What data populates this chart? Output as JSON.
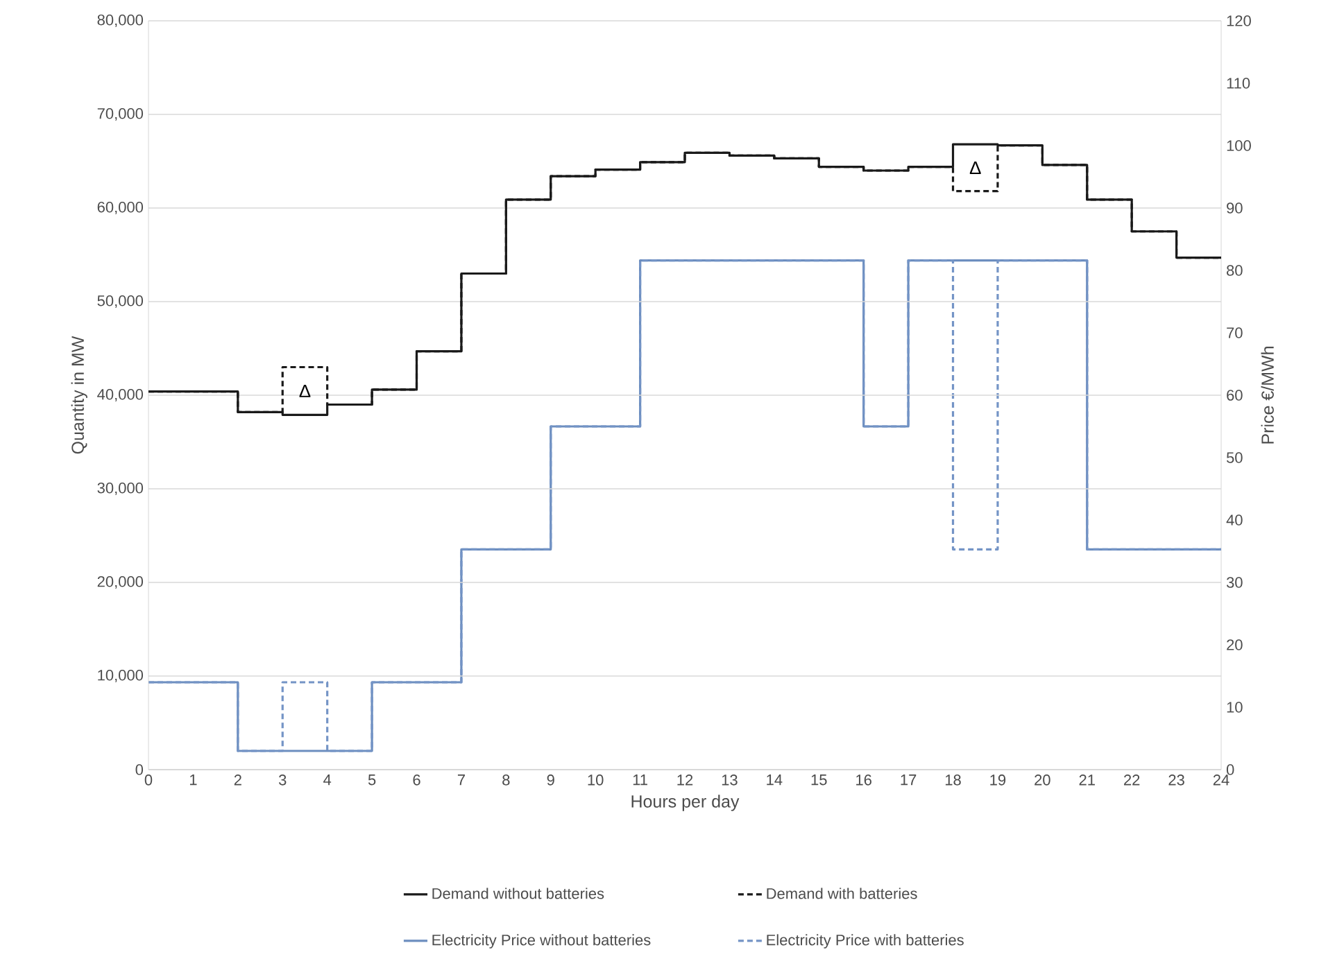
{
  "chart_data": {
    "type": "step",
    "xlabel": "Hours per day",
    "ylabel": "Quantity in MW",
    "y2label": "Price €/MWh",
    "x": [
      0,
      1,
      2,
      3,
      4,
      5,
      6,
      7,
      8,
      9,
      10,
      11,
      12,
      13,
      14,
      15,
      16,
      17,
      18,
      19,
      20,
      21,
      22,
      23,
      24
    ],
    "xlim": [
      0,
      24
    ],
    "xticks": [
      0,
      1,
      2,
      3,
      4,
      5,
      6,
      7,
      8,
      9,
      10,
      11,
      12,
      13,
      14,
      15,
      16,
      17,
      18,
      19,
      20,
      21,
      22,
      23,
      24
    ],
    "ylim": [
      0,
      80000
    ],
    "yticks": [
      {
        "value": 0,
        "label": "0"
      },
      {
        "value": 10000,
        "label": "10,000"
      },
      {
        "value": 20000,
        "label": "20,000"
      },
      {
        "value": 30000,
        "label": "30,000"
      },
      {
        "value": 40000,
        "label": "40,000"
      },
      {
        "value": 50000,
        "label": "50,000"
      },
      {
        "value": 60000,
        "label": "60,000"
      },
      {
        "value": 70000,
        "label": "70,000"
      },
      {
        "value": 80000,
        "label": "80,000"
      }
    ],
    "y2lim": [
      0,
      120
    ],
    "y2ticks": [
      0,
      10,
      20,
      30,
      40,
      50,
      60,
      70,
      80,
      90,
      100,
      110,
      120
    ],
    "grid": "y",
    "legend": "bottom",
    "marker": "none",
    "series": [
      {
        "name": "Demand without batteries",
        "color": "#1a1a1a",
        "line_style": "solid",
        "values": [
          40400,
          40400,
          38200,
          37900,
          39000,
          40600,
          44700,
          53000,
          60900,
          63400,
          64100,
          64900,
          65900,
          65600,
          65300,
          64400,
          64000,
          64400,
          66800,
          66700,
          64600,
          60900,
          57500,
          54700,
          54700
        ]
      },
      {
        "name": "Demand with batteries",
        "color": "#1a1a1a",
        "line_style": "dashed",
        "values": [
          40400,
          40400,
          38200,
          43000,
          39000,
          40600,
          44700,
          53000,
          60900,
          63400,
          64100,
          64900,
          65900,
          65600,
          65300,
          64400,
          64000,
          64400,
          61800,
          66700,
          64600,
          60900,
          57500,
          54700,
          54700
        ]
      },
      {
        "name": "Electricity Price without batteries",
        "color": "#6c8ebf",
        "line_style": "solid",
        "axis": "y2",
        "values": [
          14,
          14,
          3,
          3,
          3,
          14,
          14,
          35.3,
          35.3,
          55,
          55,
          81.6,
          81.6,
          81.6,
          81.6,
          81.6,
          55,
          81.6,
          81.6,
          81.6,
          81.6,
          35.3,
          35.3,
          35.3,
          35.3
        ]
      },
      {
        "name": "Electricity Price with batteries",
        "color": "#7494c6",
        "line_style": "dashed",
        "axis": "y2",
        "values": [
          14,
          14,
          3,
          14,
          3,
          14,
          14,
          35.3,
          35.3,
          55,
          55,
          81.6,
          81.6,
          81.6,
          81.6,
          81.6,
          55,
          81.6,
          35.3,
          81.6,
          81.6,
          35.3,
          35.3,
          35.3,
          35.3
        ]
      }
    ],
    "annotations": [
      "Δ",
      "Δ"
    ]
  }
}
